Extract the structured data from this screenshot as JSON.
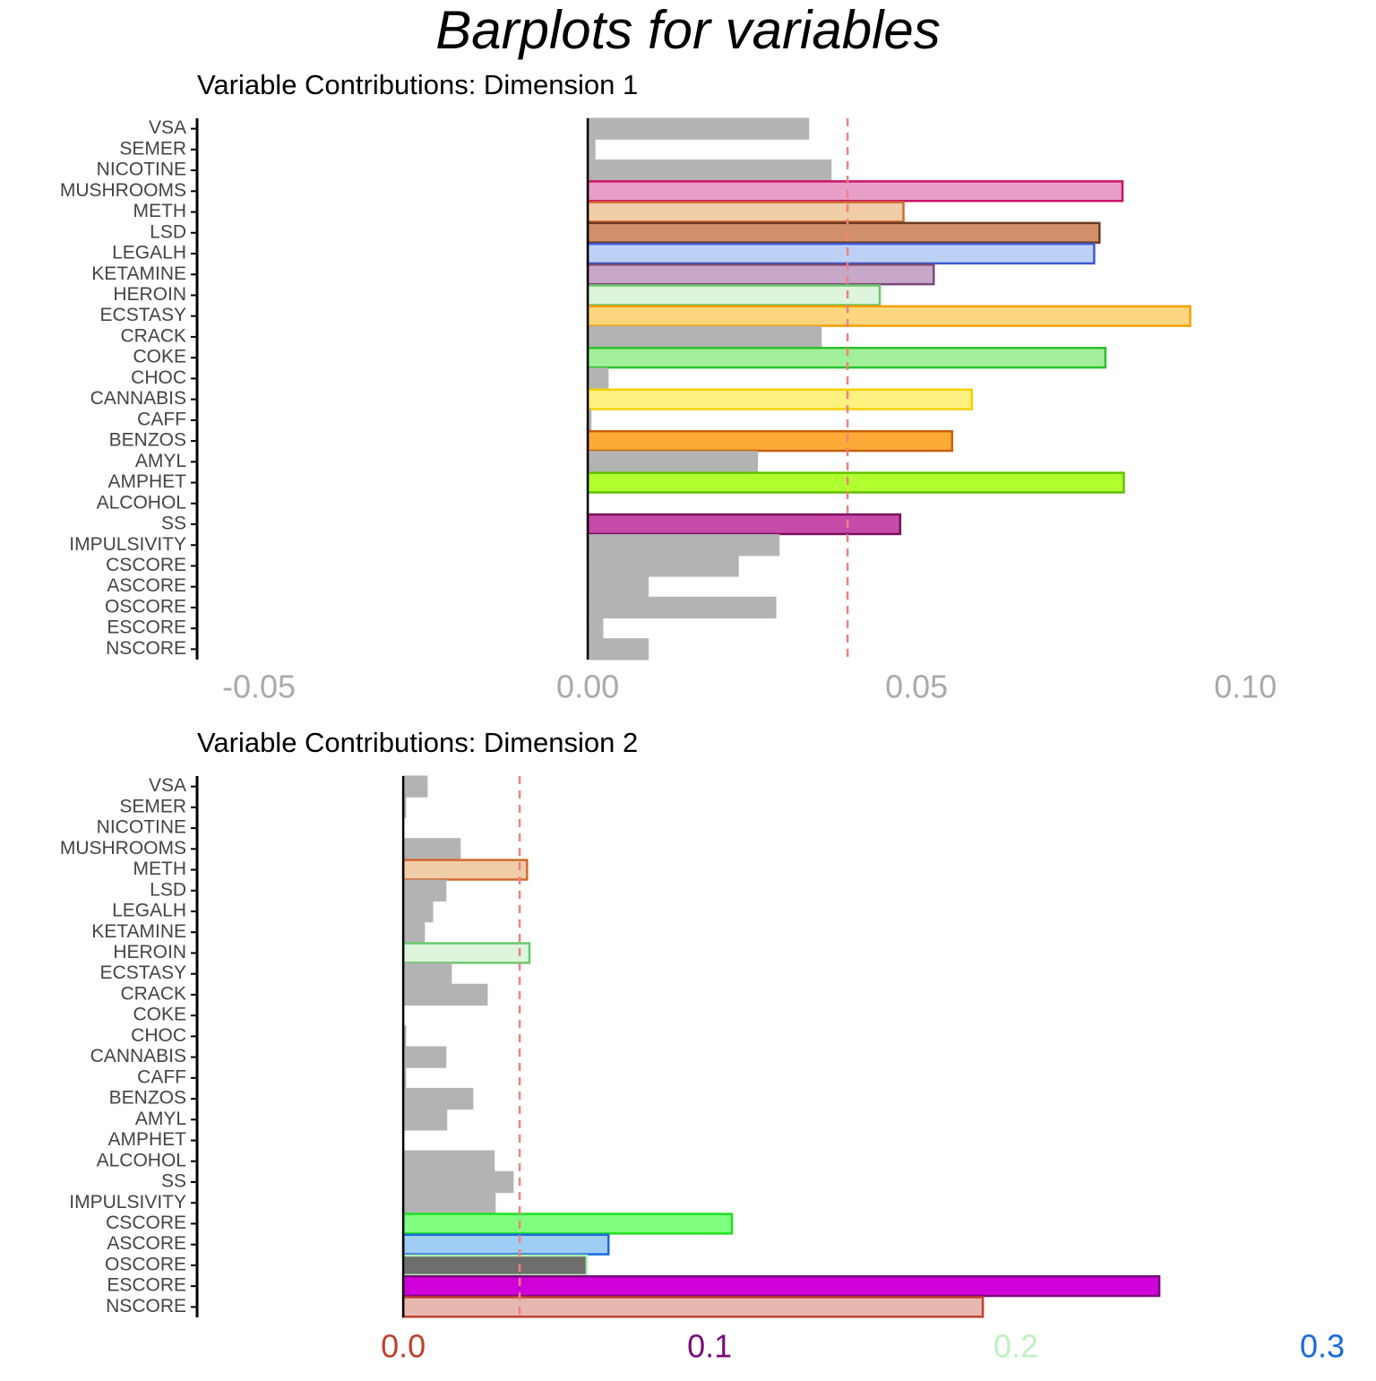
{
  "title": "Barplots for variables",
  "chart_data": [
    {
      "type": "barh",
      "title": "Variable Contributions: Dimension 1",
      "categories": [
        "VSA",
        "SEMER",
        "NICOTINE",
        "MUSHROOMS",
        "METH",
        "LSD",
        "LEGALH",
        "KETAMINE",
        "HEROIN",
        "ECSTASY",
        "CRACK",
        "COKE",
        "CHOC",
        "CANNABIS",
        "CAFF",
        "BENZOS",
        "AMYL",
        "AMPHET",
        "ALCOHOL",
        "SS",
        "IMPULSIVITY",
        "CSCORE",
        "ASCORE",
        "OSCORE",
        "ESCORE",
        "NSCORE"
      ],
      "values": [
        0.0335,
        0.001,
        0.0369,
        0.0813,
        0.048,
        0.0778,
        0.077,
        0.0526,
        0.0444,
        0.0916,
        0.0354,
        0.0787,
        0.003,
        0.0584,
        0.0004,
        0.0554,
        0.0257,
        0.0815,
        0,
        0.0475,
        0.029,
        0.0228,
        0.0091,
        0.0285,
        0.0022,
        0.0091
      ],
      "colors": [
        "#b3b3b3",
        "#b3b3b3",
        "#b3b3b3",
        "#e8a0c8",
        "#f0cda8",
        "#d2906a",
        "#bdd0f5",
        "#c8a8c8",
        "#dcf5dc",
        "#fcd77f",
        "#b3b3b3",
        "#a3f09b",
        "#b3b3b3",
        "#fdf17f",
        "#b3b3b3",
        "#fcab38",
        "#b3b3b3",
        "#b2ff30",
        "#b3b3b3",
        "#c84aa8",
        "#b3b3b3",
        "#b3b3b3",
        "#b3b3b3",
        "#b3b3b3",
        "#b3b3b3",
        "#b3b3b3"
      ],
      "edge_colors": [
        "#b3b3b3",
        "#b3b3b3",
        "#b3b3b3",
        "#cc1166",
        "#d06a30",
        "#6b3a20",
        "#3a5ad0",
        "#7a4a7a",
        "#6ac86a",
        "#f5a000",
        "#b3b3b3",
        "#2ac02a",
        "#b3b3b3",
        "#f5d000",
        "#b3b3b3",
        "#c8600a",
        "#b3b3b3",
        "#60c000",
        "#b3b3b3",
        "#7a1060",
        "#b3b3b3",
        "#b3b3b3",
        "#b3b3b3",
        "#b3b3b3",
        "#b3b3b3",
        "#b3b3b3"
      ],
      "reference_line": 0.0395,
      "xlim": [
        -0.0594,
        0.1065
      ],
      "xticks": [
        -0.05,
        {
          "value": 0,
          "label": "0.00"
        },
        0.05,
        {
          "value": 0.1,
          "label": "0.10"
        }
      ],
      "xtick_colors": [
        "#aaaaaa",
        "#aaaaaa",
        "#aaaaaa",
        "#aaaaaa"
      ]
    },
    {
      "type": "barh",
      "title": "Variable Contributions: Dimension 2",
      "categories": [
        "VSA",
        "SEMER",
        "NICOTINE",
        "MUSHROOMS",
        "METH",
        "LSD",
        "LEGALH",
        "KETAMINE",
        "HEROIN",
        "ECSTASY",
        "CRACK",
        "COKE",
        "CHOC",
        "CANNABIS",
        "CAFF",
        "BENZOS",
        "AMYL",
        "AMPHET",
        "ALCOHOL",
        "SS",
        "IMPULSIVITY",
        "CSCORE",
        "ASCORE",
        "OSCORE",
        "ESCORE",
        "NSCORE"
      ],
      "values": [
        0.0076,
        0.0006,
        0,
        0.0184,
        0.0404,
        0.0137,
        0.0094,
        0.0067,
        0.0412,
        0.0155,
        0.0272,
        0,
        0.0006,
        0.0137,
        0.0006,
        0.0225,
        0.014,
        0,
        0.0295,
        0.0357,
        0.0298,
        0.1073,
        0.067,
        0.0599,
        0.2468,
        0.1892
      ],
      "colors": [
        "#b3b3b3",
        "#b3b3b3",
        "#b3b3b3",
        "#b3b3b3",
        "#f0cda8",
        "#b3b3b3",
        "#b3b3b3",
        "#b3b3b3",
        "#dcf5dc",
        "#b3b3b3",
        "#b3b3b3",
        "#b3b3b3",
        "#b3b3b3",
        "#b3b3b3",
        "#b3b3b3",
        "#b3b3b3",
        "#b3b3b3",
        "#b3b3b3",
        "#b3b3b3",
        "#b3b3b3",
        "#b3b3b3",
        "#80ff80",
        "#a0cdf5",
        "#6e6e6e",
        "#d000d8",
        "#e8b8b0"
      ],
      "edge_colors": [
        "#b3b3b3",
        "#b3b3b3",
        "#b3b3b3",
        "#b3b3b3",
        "#d06a30",
        "#b3b3b3",
        "#b3b3b3",
        "#b3b3b3",
        "#6ac86a",
        "#b3b3b3",
        "#b3b3b3",
        "#b3b3b3",
        "#b3b3b3",
        "#b3b3b3",
        "#b3b3b3",
        "#b3b3b3",
        "#b3b3b3",
        "#b3b3b3",
        "#b3b3b3",
        "#b3b3b3",
        "#b3b3b3",
        "#20e020",
        "#1a6adc",
        "#b0f0b0",
        "#7a0a7a",
        "#c04030"
      ],
      "reference_line": 0.038,
      "xlim": [
        -0.0673,
        0.3
      ],
      "xticks": [
        {
          "value": 0,
          "label": "0.0"
        },
        0.1,
        0.2,
        0.3
      ],
      "xtick_colors": [
        "#c04030",
        "#7a0a7a",
        "#c0f0c0",
        "#1a6adc"
      ]
    }
  ]
}
